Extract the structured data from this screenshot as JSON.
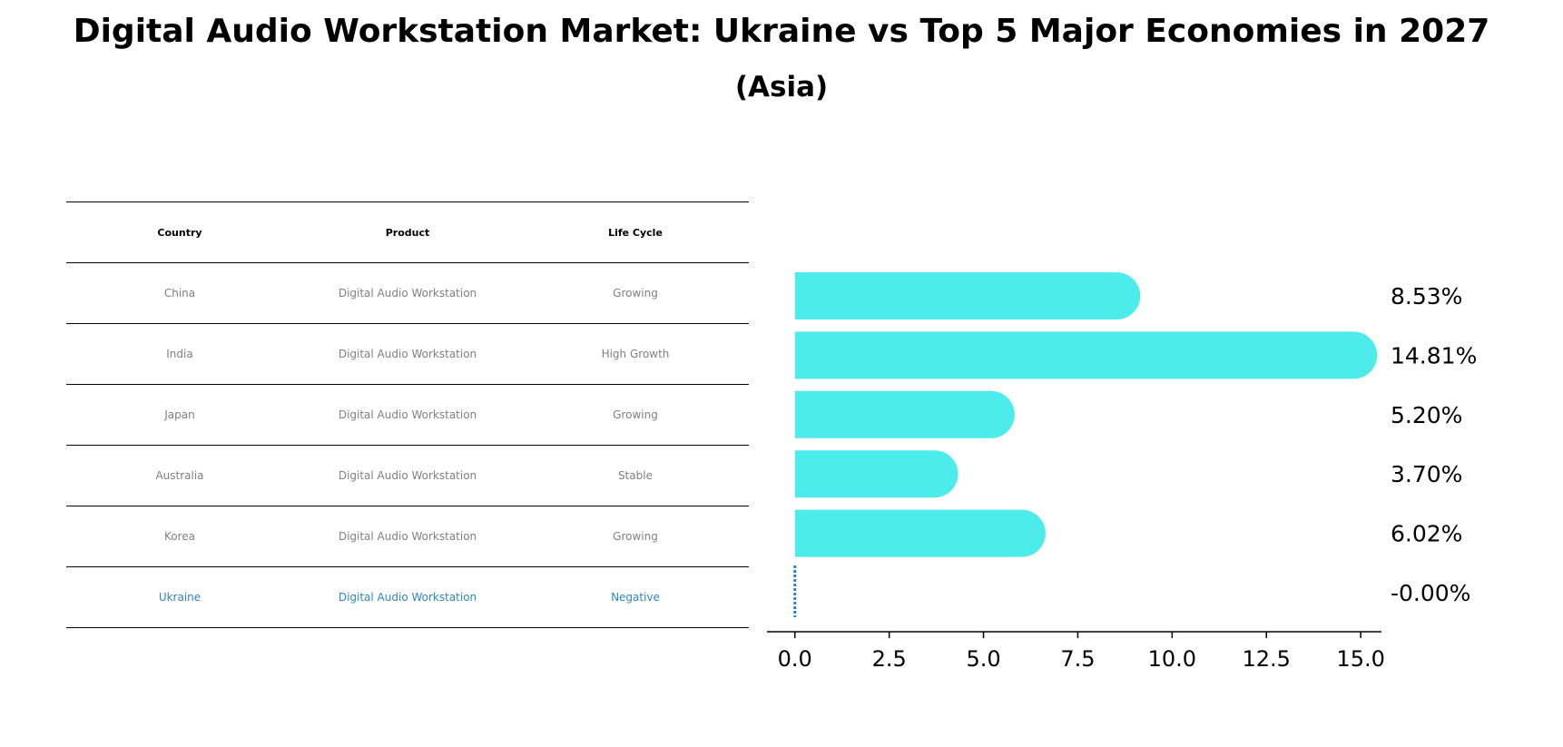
{
  "title": "Digital Audio Workstation Market: Ukraine vs Top 5 Major Economies in 2027",
  "subtitle": "(Asia)",
  "table": {
    "headers": [
      "Country",
      "Product",
      "Life Cycle"
    ],
    "rows": [
      {
        "country": "China",
        "product": "Digital Audio Workstation",
        "life_cycle": "Growing"
      },
      {
        "country": "India",
        "product": "Digital Audio Workstation",
        "life_cycle": "High Growth"
      },
      {
        "country": "Japan",
        "product": "Digital Audio Workstation",
        "life_cycle": "Growing"
      },
      {
        "country": "Australia",
        "product": "Digital Audio Workstation",
        "life_cycle": "Stable"
      },
      {
        "country": "Korea",
        "product": "Digital Audio Workstation",
        "life_cycle": "Growing"
      },
      {
        "country": "Ukraine",
        "product": "Digital Audio Workstation",
        "life_cycle": "Negative"
      }
    ]
  },
  "colors": {
    "bar": "#4DEBEA",
    "highlight": "#2E86C1",
    "table_text": "#808080"
  },
  "chart_data": {
    "type": "bar",
    "orientation": "horizontal",
    "categories": [
      "China",
      "India",
      "Japan",
      "Australia",
      "Korea",
      "Ukraine"
    ],
    "values": [
      8.53,
      14.81,
      5.2,
      3.7,
      6.02,
      -0.0
    ],
    "value_labels": [
      "8.53%",
      "14.81%",
      "5.20%",
      "3.70%",
      "6.02%",
      "-0.00%"
    ],
    "xlim": [
      -0.74,
      15.55
    ],
    "xticks": [
      0.0,
      2.5,
      5.0,
      7.5,
      10.0,
      12.5,
      15.0
    ],
    "xtick_labels": [
      "0.0",
      "2.5",
      "5.0",
      "7.5",
      "10.0",
      "12.5",
      "15.0"
    ],
    "xlabel": "",
    "ylabel": "",
    "grid": false,
    "highlight_category": "Ukraine"
  }
}
